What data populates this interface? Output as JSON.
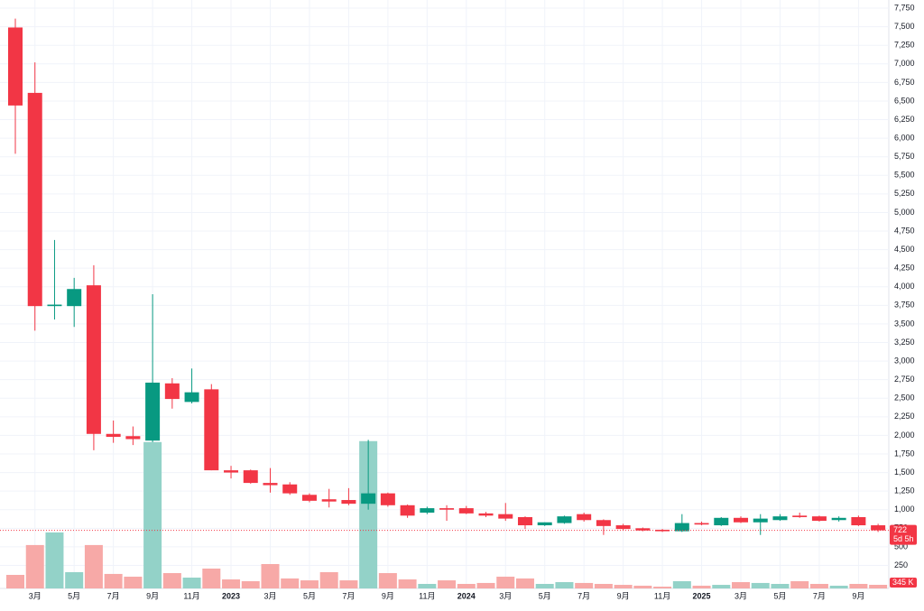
{
  "chart_data": {
    "type": "candlestick",
    "categories": [
      null,
      "3月",
      null,
      "5月",
      null,
      "7月",
      null,
      "9月",
      null,
      "11月",
      null,
      "2023",
      null,
      "3月",
      null,
      "5月",
      null,
      "7月",
      null,
      "9月",
      null,
      "11月",
      null,
      "2024",
      null,
      "3月",
      null,
      "5月",
      null,
      "7月",
      null,
      "9月",
      null,
      "11月",
      null,
      "2025",
      null,
      "3月",
      null,
      "5月",
      null,
      "7月",
      null,
      "9月",
      null
    ],
    "open": [
      7490,
      6610,
      3740,
      3740,
      4020,
      2020,
      1990,
      1930,
      2700,
      2450,
      2620,
      1530,
      1530,
      1360,
      1340,
      1200,
      1140,
      1130,
      1080,
      1220,
      1060,
      960,
      1020,
      1020,
      950,
      940,
      900,
      790,
      820,
      940,
      860,
      790,
      750,
      730,
      710,
      820,
      790,
      890,
      830,
      860,
      920,
      910,
      860,
      900,
      790
    ],
    "high": [
      7610,
      7020,
      4630,
      4120,
      4290,
      2200,
      2120,
      3900,
      2770,
      2900,
      2690,
      1590,
      1540,
      1560,
      1370,
      1220,
      1280,
      1290,
      1940,
      1230,
      1070,
      1040,
      1060,
      1050,
      970,
      1090,
      910,
      830,
      920,
      960,
      870,
      810,
      760,
      740,
      940,
      840,
      900,
      910,
      940,
      940,
      960,
      920,
      910,
      920,
      810
    ],
    "low": [
      5790,
      3410,
      3560,
      3460,
      1800,
      1900,
      1870,
      1910,
      2360,
      2430,
      1530,
      1420,
      1350,
      1230,
      1200,
      1100,
      1030,
      1060,
      1000,
      1040,
      890,
      940,
      850,
      940,
      900,
      850,
      740,
      780,
      810,
      840,
      660,
      720,
      710,
      700,
      700,
      790,
      780,
      820,
      660,
      850,
      890,
      840,
      840,
      780,
      700
    ],
    "close": [
      6440,
      3740,
      3760,
      3970,
      2020,
      1980,
      1950,
      2710,
      2490,
      2580,
      1530,
      1500,
      1360,
      1330,
      1220,
      1120,
      1110,
      1080,
      1220,
      1060,
      920,
      1020,
      1000,
      950,
      920,
      880,
      790,
      830,
      910,
      860,
      780,
      740,
      720,
      710,
      820,
      800,
      890,
      830,
      880,
      910,
      900,
      850,
      890,
      790,
      722
    ],
    "up_color": "#089981",
    "down_color": "#f23645",
    "volume": [
      1290,
      4130,
      5330,
      1550,
      4130,
      1380,
      1120,
      13930,
      1460,
      1030,
      1890,
      860,
      690,
      2320,
      950,
      770,
      1550,
      770,
      14020,
      1460,
      860,
      430,
      770,
      430,
      520,
      1120,
      950,
      430,
      600,
      520,
      430,
      340,
      260,
      170,
      690,
      260,
      340,
      600,
      520,
      430,
      690,
      430,
      260,
      430,
      345
    ],
    "volume_up_color": "#93d2c8",
    "volume_down_color": "#f7a9a7",
    "vlim": [
      0,
      56000
    ],
    "volume_last_label": "345 K",
    "last_price": 722,
    "countdown": "5d 5h",
    "ylim": [
      -60,
      7860
    ],
    "yticks": [
      250,
      500,
      750,
      {
        "value": 1000,
        "label": "1,000"
      },
      {
        "value": 1250,
        "label": "1,250"
      },
      {
        "value": 1500,
        "label": "1,500"
      },
      {
        "value": 1750,
        "label": "1,750"
      },
      {
        "value": 2000,
        "label": "2,000"
      },
      {
        "value": 2250,
        "label": "2,250"
      },
      {
        "value": 2500,
        "label": "2,500"
      },
      {
        "value": 2750,
        "label": "2,750"
      },
      {
        "value": 3000,
        "label": "3,000"
      },
      {
        "value": 3250,
        "label": "3,250"
      },
      {
        "value": 3500,
        "label": "3,500"
      },
      {
        "value": 3750,
        "label": "3,750"
      },
      {
        "value": 4000,
        "label": "4,000"
      },
      {
        "value": 4250,
        "label": "4,250"
      },
      {
        "value": 4500,
        "label": "4,500"
      },
      {
        "value": 4750,
        "label": "4,750"
      },
      {
        "value": 5000,
        "label": "5,000"
      },
      {
        "value": 5250,
        "label": "5,250"
      },
      {
        "value": 5500,
        "label": "5,500"
      },
      {
        "value": 5750,
        "label": "5,750"
      },
      {
        "value": 6000,
        "label": "6,000"
      },
      {
        "value": 6250,
        "label": "6,250"
      },
      {
        "value": 6500,
        "label": "6,500"
      },
      {
        "value": 6750,
        "label": "6,750"
      },
      {
        "value": 7000,
        "label": "7,000"
      },
      {
        "value": 7250,
        "label": "7,250"
      },
      {
        "value": 7500,
        "label": "7,500"
      },
      {
        "value": 7750,
        "label": "7,750"
      }
    ],
    "grid": true
  }
}
